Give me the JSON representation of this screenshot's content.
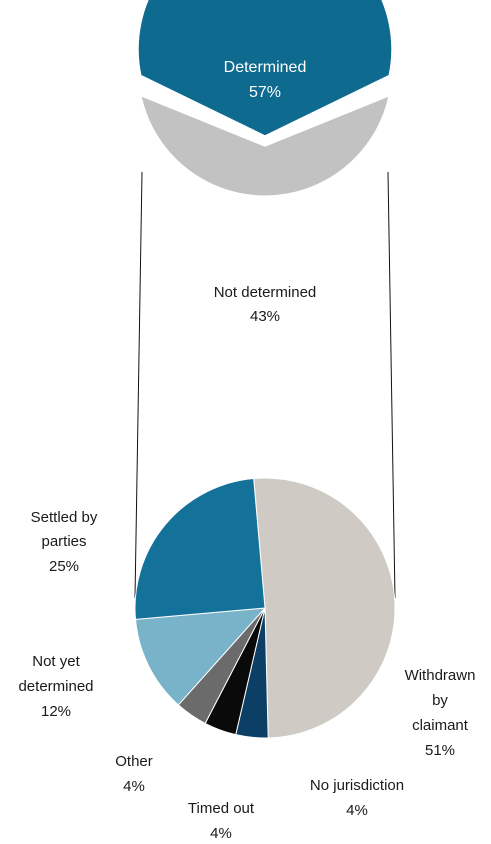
{
  "chart_data": [
    {
      "type": "pie",
      "variant": "split-pie",
      "slices": [
        {
          "label": "Determined",
          "value_label": "57%",
          "value": 57,
          "color": "#0e6a8f"
        },
        {
          "label": "Not determined",
          "value_label": "43%",
          "value": 43,
          "color": "#c2c2c2"
        }
      ]
    },
    {
      "type": "pie",
      "variant": "breakdown-of-not-determined",
      "slices": [
        {
          "label": "Withdrawn by claimant",
          "value_label": "51%",
          "value": 51,
          "color": "#d0cac5"
        },
        {
          "label": "No jurisdiction",
          "value_label": "4%",
          "value": 4,
          "color": "#0b3f66"
        },
        {
          "label": "Timed out",
          "value_label": "4%",
          "value": 4,
          "color": "#0a0a0a"
        },
        {
          "label": "Other",
          "value_label": "4%",
          "value": 4,
          "color": "#6b6b6b"
        },
        {
          "label": "Not yet determined",
          "value_label": "12%",
          "value": 12,
          "color": "#79b3c9"
        },
        {
          "label": "Settled by parties",
          "value_label": "25%",
          "value": 25,
          "color": "#14719a"
        }
      ]
    }
  ],
  "labels": {
    "determined": {
      "name": "Determined",
      "pct": "57%"
    },
    "not_determined": {
      "name": "Not determined",
      "pct": "43%"
    },
    "settled": {
      "line1": "Settled by",
      "line2": "parties",
      "pct": "25%"
    },
    "not_yet": {
      "line1": "Not yet",
      "line2": "determined",
      "pct": "12%"
    },
    "other": {
      "name": "Other",
      "pct": "4%"
    },
    "timed_out": {
      "name": "Timed out",
      "pct": "4%"
    },
    "no_jurisdiction": {
      "name": "No jurisdiction",
      "pct": "4%"
    },
    "withdrawn": {
      "line1": "Withdrawn",
      "line2": "by",
      "line3": "claimant",
      "pct": "51%"
    }
  }
}
